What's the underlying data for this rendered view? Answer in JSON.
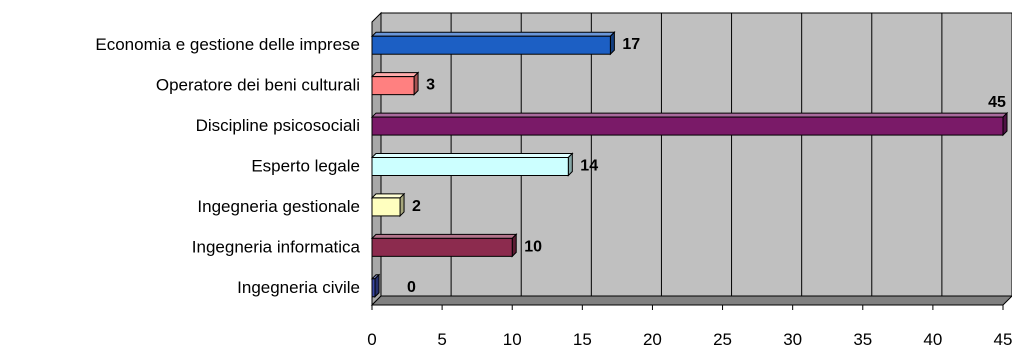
{
  "chart_data": {
    "type": "bar",
    "orientation": "horizontal",
    "style": "3d",
    "categories": [
      "Economia e gestione delle imprese",
      "Operatore dei beni culturali",
      "Discipline psicosociali",
      "Esperto legale",
      "Ingegneria gestionale",
      "Ingegneria informatica",
      "Ingegneria civile"
    ],
    "values": [
      17,
      3,
      45,
      14,
      2,
      10,
      0
    ],
    "bar_colors": [
      "#1c5fc4",
      "#ff8080",
      "#7a1a68",
      "#ccffff",
      "#ffffbf",
      "#8c2b4e",
      "#3b4aa8"
    ],
    "x_ticks": [
      "0",
      "5",
      "10",
      "15",
      "20",
      "25",
      "30",
      "35",
      "40",
      "45"
    ],
    "xlim": [
      0,
      45
    ],
    "grid": true,
    "plot_background": "#c0c0c0",
    "legend": "none",
    "title": "",
    "xlabel": "",
    "ylabel": ""
  }
}
